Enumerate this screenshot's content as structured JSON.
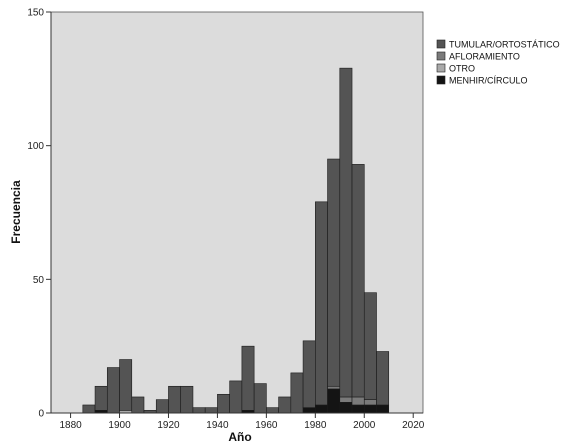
{
  "chart_data": {
    "type": "bar",
    "stacked": true,
    "xlabel": "Año",
    "ylabel": "Frecuencia",
    "xlim": [
      1872,
      2024
    ],
    "ylim": [
      0,
      150
    ],
    "xticks": [
      1880,
      1900,
      1920,
      1940,
      1960,
      1980,
      2000,
      2020
    ],
    "yticks": [
      0,
      50,
      100,
      150
    ],
    "bin_width": 5,
    "bin_starts": [
      1885,
      1890,
      1895,
      1900,
      1905,
      1910,
      1915,
      1920,
      1925,
      1930,
      1935,
      1940,
      1945,
      1950,
      1955,
      1960,
      1965,
      1970,
      1975,
      1980,
      1985,
      1990,
      1995,
      2000,
      2005
    ],
    "legend_position": "top-right",
    "grid": false,
    "series": [
      {
        "name": "MENHIR/CÍRCULO",
        "color": "#141414",
        "values": [
          0,
          1,
          0,
          0,
          0,
          0,
          0,
          0,
          0,
          0,
          0,
          0,
          0,
          1,
          0,
          0,
          0,
          0,
          2,
          3,
          9,
          4,
          3,
          3,
          3
        ]
      },
      {
        "name": "OTRO",
        "color": "#a9a9a9",
        "values": [
          0,
          0,
          0,
          1,
          0,
          0,
          0,
          0,
          0,
          0,
          0,
          0,
          0,
          0,
          0,
          0,
          0,
          0,
          0,
          0,
          0,
          0,
          0,
          0,
          0
        ]
      },
      {
        "name": "AFLORAMIENTO",
        "color": "#7a7a7a",
        "values": [
          0,
          0,
          0,
          0,
          0,
          0,
          0,
          0,
          0,
          0,
          0,
          0,
          0,
          0,
          0,
          0,
          0,
          0,
          0,
          0,
          1,
          2,
          3,
          2,
          0
        ]
      },
      {
        "name": "TUMULAR/ORTOSTÁTICO",
        "color": "#545454",
        "values": [
          3,
          9,
          17,
          19,
          6,
          1,
          5,
          10,
          10,
          2,
          2,
          7,
          12,
          24,
          11,
          2,
          6,
          15,
          25,
          76,
          85,
          123,
          87,
          40,
          20
        ]
      }
    ],
    "legend_order": [
      "TUMULAR/ORTOSTÁTICO",
      "AFLORAMIENTO",
      "OTRO",
      "MENHIR/CÍRCULO"
    ],
    "plot_background": "#dcdcdc"
  }
}
